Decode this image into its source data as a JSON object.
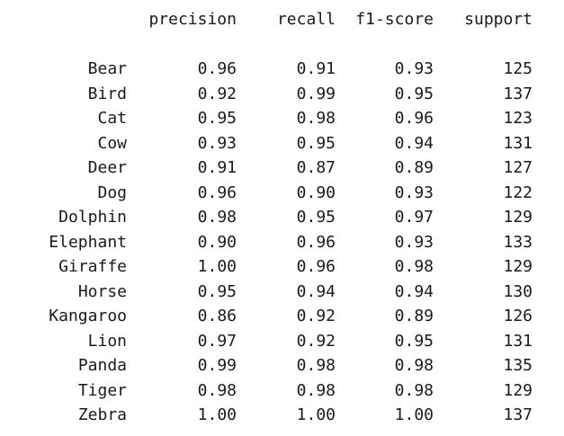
{
  "headers": {
    "label": "",
    "precision": "precision",
    "recall": "recall",
    "f1": "f1-score",
    "support": "support"
  },
  "rows": [
    {
      "label": "Bear",
      "precision": "0.96",
      "recall": "0.91",
      "f1": "0.93",
      "support": "125"
    },
    {
      "label": "Bird",
      "precision": "0.92",
      "recall": "0.99",
      "f1": "0.95",
      "support": "137"
    },
    {
      "label": "Cat",
      "precision": "0.95",
      "recall": "0.98",
      "f1": "0.96",
      "support": "123"
    },
    {
      "label": "Cow",
      "precision": "0.93",
      "recall": "0.95",
      "f1": "0.94",
      "support": "131"
    },
    {
      "label": "Deer",
      "precision": "0.91",
      "recall": "0.87",
      "f1": "0.89",
      "support": "127"
    },
    {
      "label": "Dog",
      "precision": "0.96",
      "recall": "0.90",
      "f1": "0.93",
      "support": "122"
    },
    {
      "label": "Dolphin",
      "precision": "0.98",
      "recall": "0.95",
      "f1": "0.97",
      "support": "129"
    },
    {
      "label": "Elephant",
      "precision": "0.90",
      "recall": "0.96",
      "f1": "0.93",
      "support": "133"
    },
    {
      "label": "Giraffe",
      "precision": "1.00",
      "recall": "0.96",
      "f1": "0.98",
      "support": "129"
    },
    {
      "label": "Horse",
      "precision": "0.95",
      "recall": "0.94",
      "f1": "0.94",
      "support": "130"
    },
    {
      "label": "Kangaroo",
      "precision": "0.86",
      "recall": "0.92",
      "f1": "0.89",
      "support": "126"
    },
    {
      "label": "Lion",
      "precision": "0.97",
      "recall": "0.92",
      "f1": "0.95",
      "support": "131"
    },
    {
      "label": "Panda",
      "precision": "0.99",
      "recall": "0.98",
      "f1": "0.98",
      "support": "135"
    },
    {
      "label": "Tiger",
      "precision": "0.98",
      "recall": "0.98",
      "f1": "0.98",
      "support": "129"
    },
    {
      "label": "Zebra",
      "precision": "1.00",
      "recall": "1.00",
      "f1": "1.00",
      "support": "137"
    }
  ]
}
